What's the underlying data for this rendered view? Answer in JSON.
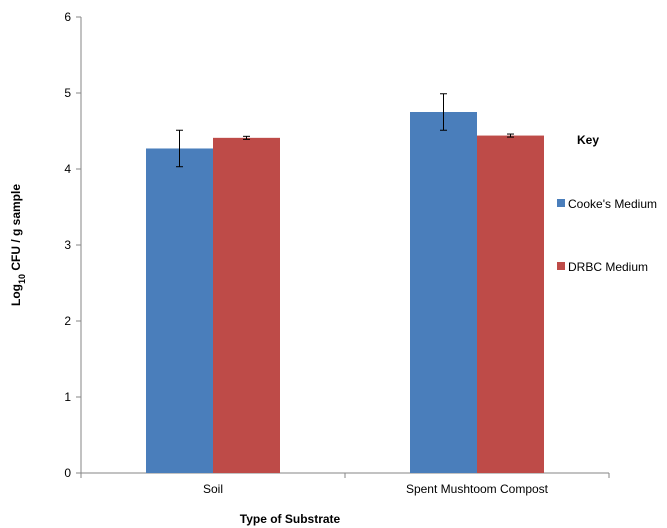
{
  "chart_data": {
    "type": "bar",
    "categories": [
      "Soil",
      "Spent Mushtoom Compost"
    ],
    "series": [
      {
        "name": "Cooke's Medium",
        "values": [
          4.27,
          4.75
        ],
        "error": [
          0.24,
          0.24
        ],
        "color": "#4a7ebb"
      },
      {
        "name": "DRBC Medium",
        "values": [
          4.41,
          4.44
        ],
        "error": [
          0.02,
          0.02
        ],
        "color": "#be4b48"
      }
    ],
    "xlabel": "Type of Substrate",
    "ylabel": {
      "prefix": "Log",
      "subscript": "10",
      "suffix": " CFU / g sample"
    },
    "ylim": [
      0,
      6
    ],
    "yticks": [
      0,
      1,
      2,
      3,
      4,
      5,
      6
    ],
    "grid": false,
    "legend": {
      "title": "Key",
      "placement": "right"
    }
  }
}
